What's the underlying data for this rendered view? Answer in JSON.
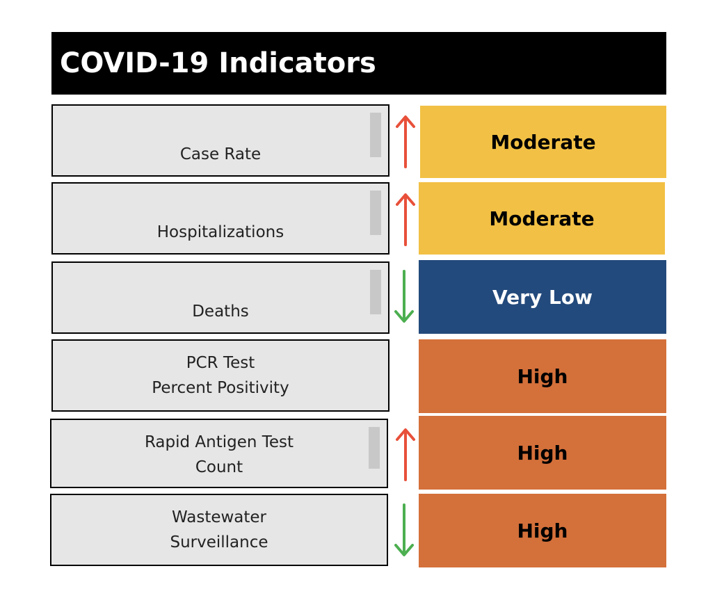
{
  "title": "COVID-19 Indicators",
  "colors": {
    "moderate": "#f2c044",
    "very_low": "#234a7c",
    "high": "#d4703a",
    "arrow_up": "#e8503a",
    "arrow_down": "#4caf50"
  },
  "indicators": [
    {
      "label_lines": [
        "Case Rate"
      ],
      "trend": "up",
      "trend_icon": "arrow-up-icon",
      "level": "Moderate",
      "level_color": "#f2c044"
    },
    {
      "label_lines": [
        "Hospitalizations"
      ],
      "trend": "up",
      "trend_icon": "arrow-up-icon",
      "level": "Moderate",
      "level_color": "#f2c044"
    },
    {
      "label_lines": [
        "Deaths"
      ],
      "trend": "down",
      "trend_icon": "arrow-down-icon",
      "level": "Very Low",
      "level_color": "#234a7c"
    },
    {
      "label_lines": [
        "PCR Test",
        "Percent Positivity"
      ],
      "trend": "",
      "trend_icon": "",
      "level": "High",
      "level_color": "#d4703a"
    },
    {
      "label_lines": [
        "Rapid Antigen Test",
        "Count"
      ],
      "trend": "up",
      "trend_icon": "arrow-up-icon",
      "level": "High",
      "level_color": "#d4703a"
    },
    {
      "label_lines": [
        "Wastewater",
        "Surveillance"
      ],
      "trend": "down",
      "trend_icon": "arrow-down-icon",
      "level": "High",
      "level_color": "#d4703a"
    }
  ]
}
